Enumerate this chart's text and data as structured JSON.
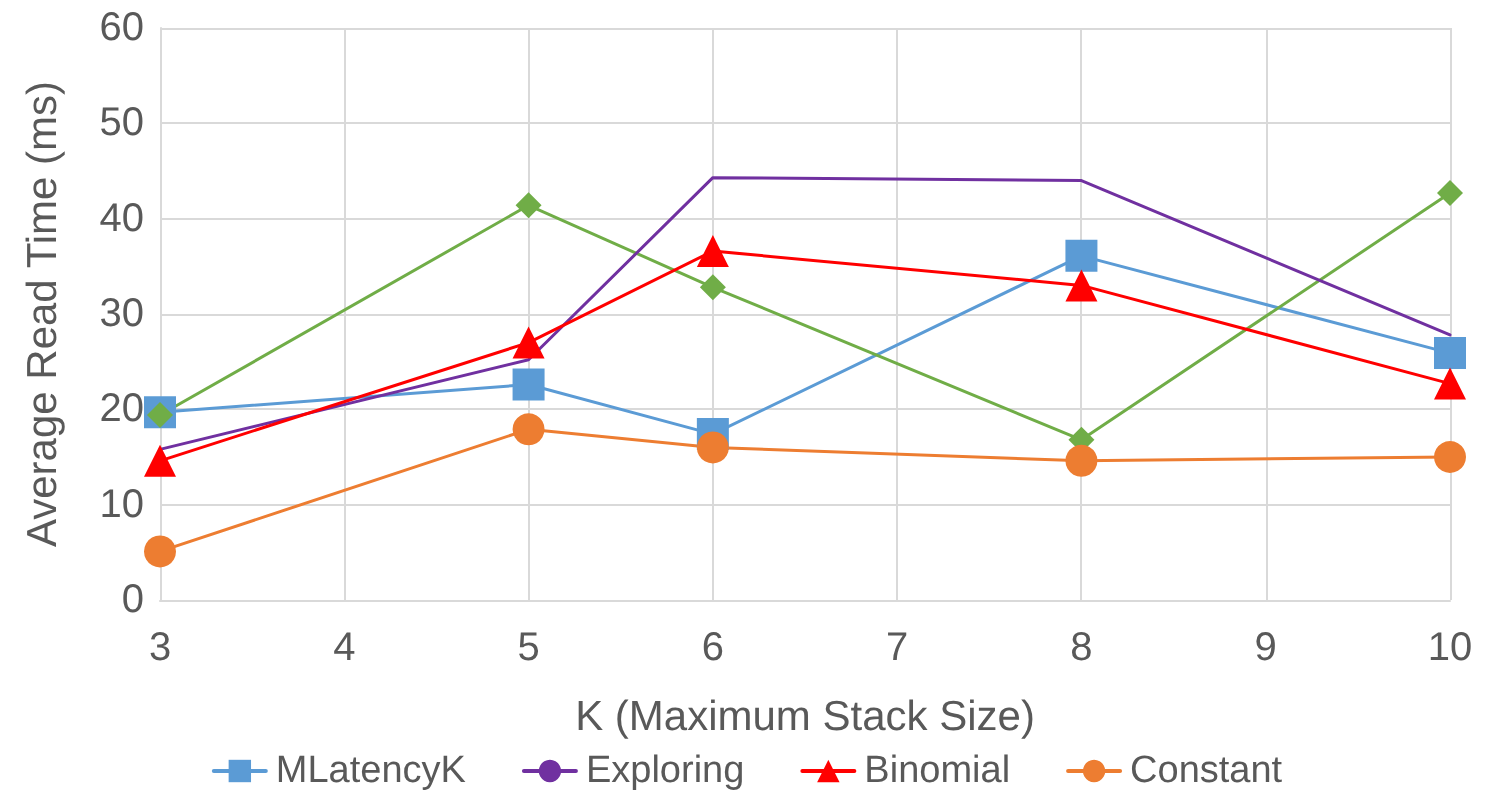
{
  "chart_data": {
    "type": "line",
    "xlabel": "K (Maximum Stack Size)",
    "ylabel": "Average Read Time (ms)",
    "x": [
      3,
      5,
      6,
      8,
      10
    ],
    "xlim": [
      3,
      10
    ],
    "xticks": [
      3,
      4,
      5,
      6,
      7,
      8,
      9,
      10
    ],
    "ylim": [
      0,
      60
    ],
    "yticks": [
      0,
      10,
      20,
      30,
      40,
      50,
      60
    ],
    "grid": true,
    "legend": "bottom",
    "series": [
      {
        "name": "MLatencyK",
        "color": "#5b9bd5",
        "marker": "square",
        "values": [
          19.7,
          22.6,
          17.4,
          36.1,
          25.9
        ]
      },
      {
        "color": "#70ad47",
        "marker": "diamond",
        "values": [
          19.4,
          41.4,
          32.8,
          16.8,
          42.7
        ]
      },
      {
        "name": "Exploring",
        "color": "#7030a0",
        "marker": "none",
        "values": [
          15.8,
          25.2,
          44.3,
          44.0,
          27.8
        ]
      },
      {
        "name": "Binomial",
        "color": "#ff0000",
        "marker": "triangle",
        "values": [
          14.6,
          27.0,
          36.6,
          33.0,
          22.7
        ]
      },
      {
        "name": "Constant",
        "color": "#ed7d31",
        "marker": "circle",
        "values": [
          5.1,
          17.9,
          16.0,
          14.6,
          15.0
        ]
      }
    ]
  }
}
